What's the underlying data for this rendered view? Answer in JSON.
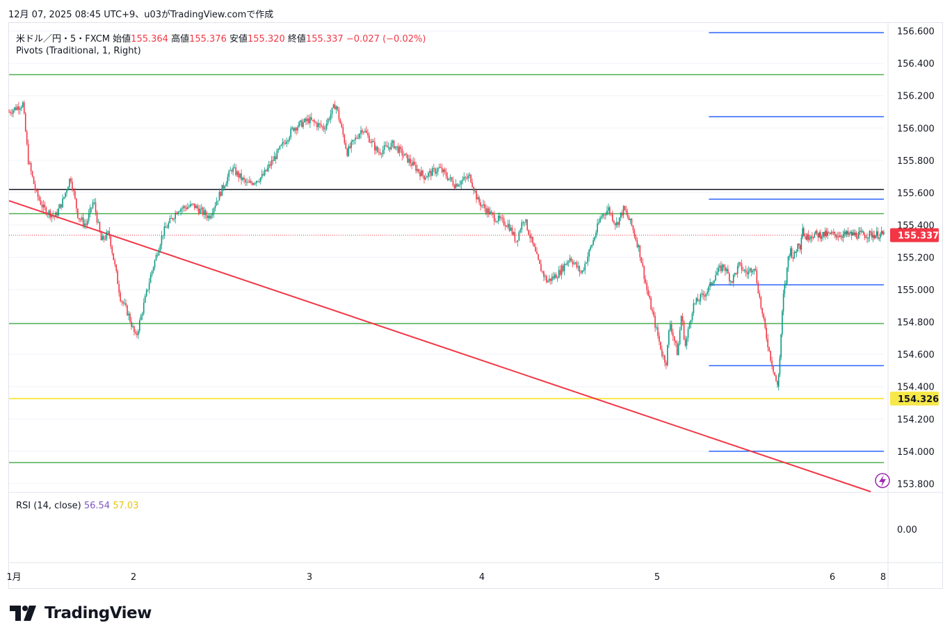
{
  "header": {
    "text": "12月 07, 2025 08:45 UTC+9、u03がTradingView.comで作成"
  },
  "legend": {
    "symbol": "米ドル／円・5・FXCM",
    "open_label": "始値",
    "open": "155.364",
    "high_label": "高値",
    "high": "155.376",
    "low_label": "安値",
    "low": "155.320",
    "close_label": "終値",
    "close": "155.337",
    "change": "−0.027 (−0.02%)",
    "pivots": "Pivots (Traditional, 1, Right)",
    "rsi_label": "RSI (14, close)",
    "rsi_value": "56.54",
    "rsi_ma_value": "57.03"
  },
  "brand": {
    "name": "TradingView"
  },
  "colors": {
    "up": "#089981",
    "down": "#f23645",
    "green": "#4caf50",
    "blue": "#2962ff",
    "black": "#131722",
    "yellow": "#f7e84a",
    "trend": "#f23645",
    "grid": "#f0f3fa"
  },
  "chart_data": {
    "type": "candlestick",
    "symbol": "USD/JPY",
    "timeframe": "5",
    "y_axis": {
      "range": [
        153.75,
        156.65
      ],
      "ticks": [
        "156.600",
        "156.400",
        "156.200",
        "156.000",
        "155.800",
        "155.600",
        "155.400",
        "155.200",
        "155.000",
        "154.800",
        "154.600",
        "154.400",
        "154.200",
        "154.000",
        "153.800"
      ]
    },
    "x_axis": {
      "ticks": [
        "1月",
        "2",
        "3",
        "4",
        "5",
        "6",
        "8"
      ]
    },
    "price_labels": {
      "last": "155.337",
      "horizontal": "154.326"
    },
    "horizontal_lines": [
      {
        "kind": "pivot",
        "color": "green",
        "value": 156.33,
        "from": 0,
        "to": 1
      },
      {
        "kind": "pivot",
        "color": "green",
        "value": 155.47,
        "from": 0,
        "to": 1
      },
      {
        "kind": "pivot",
        "color": "green",
        "value": 154.79,
        "from": 0,
        "to": 1
      },
      {
        "kind": "pivot",
        "color": "green",
        "value": 153.93,
        "from": 0,
        "to": 1
      },
      {
        "kind": "pivot",
        "color": "blue",
        "value": 156.59,
        "from": 0.8,
        "to": 1
      },
      {
        "kind": "pivot",
        "color": "blue",
        "value": 156.07,
        "from": 0.8,
        "to": 1
      },
      {
        "kind": "pivot",
        "color": "blue",
        "value": 155.56,
        "from": 0.8,
        "to": 1
      },
      {
        "kind": "pivot",
        "color": "blue",
        "value": 155.03,
        "from": 0.8,
        "to": 1
      },
      {
        "kind": "pivot",
        "color": "blue",
        "value": 154.53,
        "from": 0.8,
        "to": 1
      },
      {
        "kind": "pivot",
        "color": "blue",
        "value": 154.0,
        "from": 0.8,
        "to": 1
      },
      {
        "kind": "resistance",
        "color": "black",
        "value": 155.62,
        "from": 0,
        "to": 1
      },
      {
        "kind": "support",
        "color": "yellow",
        "value": 154.326,
        "from": 0,
        "to": 1
      }
    ],
    "trend_line": {
      "from": {
        "t": 0,
        "price": 155.55
      },
      "to": {
        "t": 0.985,
        "price": 153.75
      }
    },
    "path": [
      [
        0.0,
        156.1
      ],
      [
        0.018,
        156.15
      ],
      [
        0.025,
        155.8
      ],
      [
        0.035,
        155.6
      ],
      [
        0.045,
        155.5
      ],
      [
        0.06,
        155.45
      ],
      [
        0.07,
        155.55
      ],
      [
        0.08,
        155.7
      ],
      [
        0.09,
        155.45
      ],
      [
        0.1,
        155.4
      ],
      [
        0.11,
        155.55
      ],
      [
        0.12,
        155.3
      ],
      [
        0.13,
        155.35
      ],
      [
        0.145,
        154.95
      ],
      [
        0.155,
        154.85
      ],
      [
        0.165,
        154.7
      ],
      [
        0.175,
        154.9
      ],
      [
        0.185,
        155.1
      ],
      [
        0.2,
        155.35
      ],
      [
        0.22,
        155.5
      ],
      [
        0.24,
        155.52
      ],
      [
        0.26,
        155.45
      ],
      [
        0.275,
        155.6
      ],
      [
        0.29,
        155.75
      ],
      [
        0.31,
        155.65
      ],
      [
        0.33,
        155.7
      ],
      [
        0.35,
        155.85
      ],
      [
        0.37,
        156.0
      ],
      [
        0.39,
        156.05
      ],
      [
        0.41,
        156.0
      ],
      [
        0.425,
        156.15
      ],
      [
        0.44,
        155.85
      ],
      [
        0.46,
        156.0
      ],
      [
        0.48,
        155.85
      ],
      [
        0.5,
        155.9
      ],
      [
        0.52,
        155.8
      ],
      [
        0.54,
        155.7
      ],
      [
        0.56,
        155.75
      ],
      [
        0.58,
        155.65
      ],
      [
        0.6,
        155.7
      ],
      [
        0.61,
        155.55
      ],
      [
        0.63,
        155.45
      ],
      [
        0.65,
        155.4
      ],
      [
        0.66,
        155.3
      ],
      [
        0.67,
        155.45
      ],
      [
        0.68,
        155.3
      ],
      [
        0.69,
        155.15
      ],
      [
        0.7,
        155.05
      ],
      [
        0.715,
        155.1
      ],
      [
        0.73,
        155.2
      ],
      [
        0.745,
        155.1
      ],
      [
        0.76,
        155.3
      ],
      [
        0.77,
        155.45
      ],
      [
        0.78,
        155.5
      ],
      [
        0.79,
        155.4
      ],
      [
        0.8,
        155.5
      ],
      [
        0.81,
        155.4
      ],
      [
        0.82,
        155.25
      ],
      [
        0.83,
        155.0
      ],
      [
        0.84,
        154.8
      ],
      [
        0.85,
        154.6
      ],
      [
        0.855,
        154.55
      ],
      [
        0.86,
        154.8
      ],
      [
        0.87,
        154.6
      ],
      [
        0.875,
        154.85
      ],
      [
        0.88,
        154.65
      ],
      [
        0.89,
        154.9
      ],
      [
        0.9,
        154.95
      ],
      [
        0.91,
        155.0
      ],
      [
        0.92,
        155.1
      ],
      [
        0.93,
        155.15
      ],
      [
        0.94,
        155.05
      ],
      [
        0.95,
        155.15
      ],
      [
        0.96,
        155.1
      ],
      [
        0.97,
        155.15
      ],
      [
        0.975,
        155.0
      ],
      [
        0.98,
        154.85
      ],
      [
        0.99,
        154.6
      ],
      [
        1.0,
        154.4
      ]
    ],
    "path2": [
      [
        0.0,
        154.4
      ],
      [
        0.02,
        154.55
      ],
      [
        0.04,
        154.8
      ],
      [
        0.06,
        155.0
      ],
      [
        0.08,
        155.05
      ],
      [
        0.1,
        155.2
      ],
      [
        0.12,
        155.25
      ],
      [
        0.15,
        155.2
      ],
      [
        0.18,
        155.25
      ],
      [
        0.2,
        155.3
      ],
      [
        0.22,
        155.25
      ],
      [
        0.23,
        155.45
      ],
      [
        0.24,
        155.35
      ],
      [
        0.26,
        155.33
      ],
      [
        0.28,
        155.32
      ],
      [
        0.3,
        155.34
      ]
    ],
    "rsi": {
      "value": 56.54,
      "ma": 57.03,
      "axis_tick": "0.00"
    }
  }
}
